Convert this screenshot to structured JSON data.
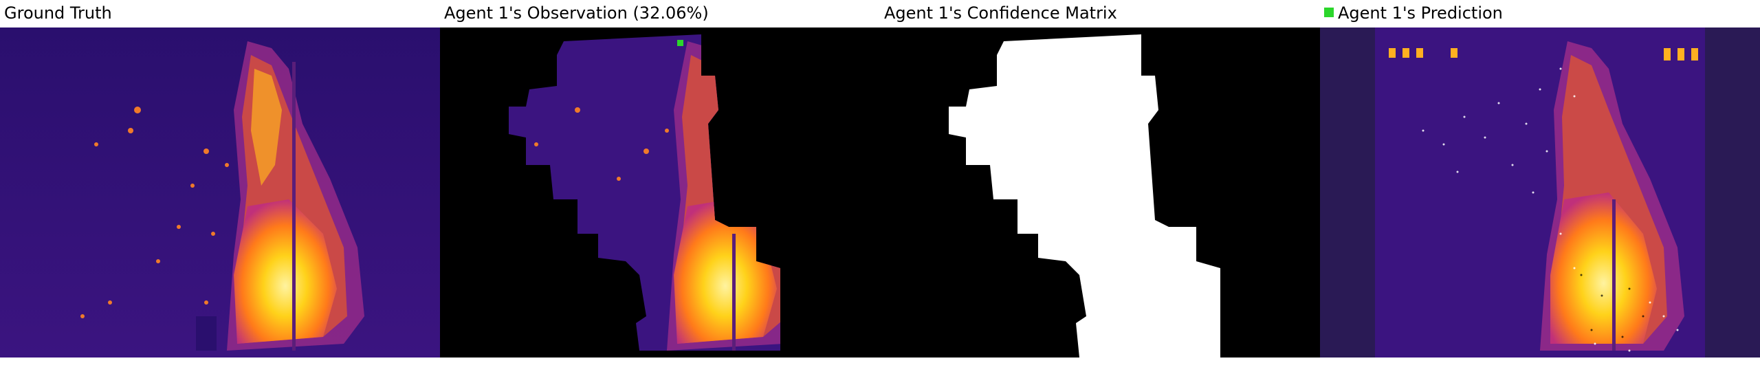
{
  "panels": [
    {
      "title": "Ground Truth"
    },
    {
      "title": "Agent 1's Observation (32.06%)"
    },
    {
      "title": "Agent 1's Confidence Matrix"
    },
    {
      "title": "Agent 1's Prediction"
    }
  ],
  "colors": {
    "background_dark": "#3a1078",
    "hot_core": "#ffd21a",
    "hot_edge": "#ff6a1a",
    "mask": "#ffffff",
    "unknown": "#000000",
    "legend_marker": "#2bd62b"
  }
}
